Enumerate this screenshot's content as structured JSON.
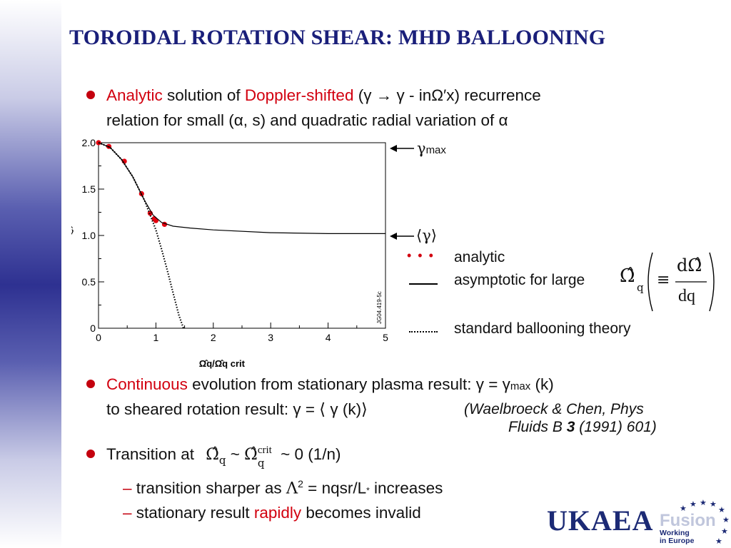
{
  "title": "TOROIDAL ROTATION SHEAR: MHD BALLOONING",
  "bullet1": {
    "w_analytic": "Analytic",
    "w_solution_of": " solution of ",
    "w_doppler": "Doppler-shifted",
    "w_paren": " (γ → γ - inΩ′x) recurrence",
    "line2": "relation for small (α, s) and quadratic radial variation of α"
  },
  "legend": {
    "gamma_max_sym": "γ",
    "gamma_max_sub": "max",
    "gamma_avg": "⟨γ⟩",
    "analytic": "analytic",
    "asymptotic": "asymptotic for large",
    "omega_hat_q": "Ω̂",
    "q_sub": "q",
    "equiv": "≡",
    "d_omega": "dΩ̂",
    "dq": "dq",
    "standard": "standard ballooning theory",
    "dots": "• • •"
  },
  "bullet2": {
    "w_continuous": "Continuous",
    "w_rest": " evolution from stationary plasma result: γ = γ",
    "w_sub": "max",
    "w_k": " (k)",
    "line2": "to sheared rotation result: γ = ⟨ γ (k)⟩",
    "ref_line1": "(Waelbroeck & Chen,  Phys",
    "ref_line2a": "Fluids B ",
    "ref_vol": "3",
    "ref_line2b": " (1991) 601)"
  },
  "bullet3": {
    "w_transition": "Transition at",
    "omega": "Ω̂",
    "q": "q",
    "tilde": " ~ ",
    "omega2": "Ω̂",
    "crit": "crit",
    "q2": "q",
    "rest": " ~ 0 (1/n)"
  },
  "sub1": {
    "dash": "–",
    "a": " transition sharper as ",
    "lambda": "Λ",
    "sup": "2",
    "b": " = nqsr/L",
    "star": "*",
    "c": " increases"
  },
  "sub2": {
    "dash": "–",
    "a": " stationary result ",
    "red": "rapidly",
    "b": " becomes invalid"
  },
  "logo": {
    "ukaea": "UKAEA",
    "fusion": "Fusion",
    "sub1": "Working",
    "sub2": "in Europe"
  },
  "chart_data": {
    "type": "line",
    "xlabel": "Ω̂q/Ω̂q crit",
    "ylabel": "γ̂",
    "xlim": [
      0,
      5
    ],
    "ylim": [
      0,
      2.0
    ],
    "x_ticks": [
      "0",
      "1",
      "2",
      "3",
      "4",
      "5"
    ],
    "y_ticks": [
      "0",
      "0.5",
      "1.0",
      "1.5",
      "2.0"
    ],
    "side_label": "JG04.419-5c",
    "series": [
      {
        "name": "analytic",
        "style": "red-dots",
        "x": [
          0.0,
          0.18,
          0.45,
          0.75,
          0.9,
          0.97,
          1.0,
          1.15
        ],
        "y": [
          2.0,
          1.96,
          1.8,
          1.45,
          1.24,
          1.18,
          1.16,
          1.12
        ]
      },
      {
        "name": "asymptotic for large",
        "style": "solid",
        "x": [
          0.0,
          0.2,
          0.4,
          0.6,
          0.8,
          0.95,
          1.1,
          1.3,
          1.6,
          2.0,
          3.0,
          4.0,
          5.0
        ],
        "y": [
          2.0,
          1.95,
          1.82,
          1.63,
          1.38,
          1.22,
          1.14,
          1.1,
          1.08,
          1.06,
          1.03,
          1.02,
          1.02
        ]
      },
      {
        "name": "standard ballooning theory",
        "style": "dotted",
        "x": [
          0.0,
          0.2,
          0.4,
          0.6,
          0.8,
          1.0,
          1.1,
          1.2,
          1.3,
          1.4,
          1.48
        ],
        "y": [
          2.0,
          1.95,
          1.82,
          1.63,
          1.38,
          1.06,
          0.85,
          0.62,
          0.38,
          0.14,
          0.0
        ]
      }
    ]
  }
}
